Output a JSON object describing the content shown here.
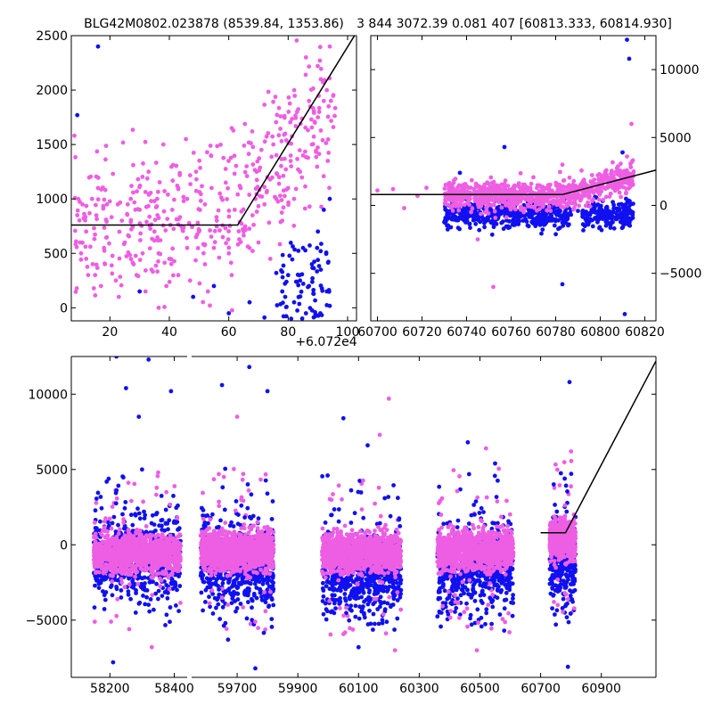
{
  "chart_data": [
    {
      "type": "scatter",
      "title": "BLG42M0802.023878 (8539.84, 1353.86)",
      "xlim": [
        7,
        103
      ],
      "ylim": [
        -120,
        2500
      ],
      "x_ticks": [
        20,
        40,
        60,
        80,
        100
      ],
      "x_tick_labels": [
        "20",
        "40",
        "60",
        "80",
        "100"
      ],
      "y_ticks": [
        0,
        500,
        1000,
        1500,
        2000,
        2500
      ],
      "y_tick_labels": [
        "0",
        "500",
        "1000",
        "1500",
        "2000",
        "2500"
      ],
      "x_offset_label": "+6.072e4",
      "colors": {
        "pink": "#ee5ee3",
        "blue": "#1010f0",
        "line": "#000000"
      },
      "model_line": [
        [
          7,
          760
        ],
        [
          63,
          760
        ],
        [
          103,
          2530
        ]
      ],
      "pink_points": [
        [
          9,
          850
        ],
        [
          12,
          700
        ],
        [
          16,
          1100
        ],
        [
          19,
          950
        ],
        [
          21,
          1230
        ],
        [
          24,
          800
        ],
        [
          27,
          1000
        ],
        [
          30,
          900
        ],
        [
          33,
          1250
        ],
        [
          35,
          700
        ],
        [
          38,
          1500
        ],
        [
          41,
          900
        ],
        [
          43,
          1100
        ],
        [
          46,
          1000
        ],
        [
          49,
          1250
        ],
        [
          52,
          950
        ],
        [
          54,
          1400
        ],
        [
          57,
          1050
        ],
        [
          59,
          1150
        ],
        [
          61,
          1650
        ],
        [
          64,
          1100
        ],
        [
          66,
          1300
        ],
        [
          69,
          1000
        ],
        [
          71,
          1450
        ],
        [
          73,
          1200
        ],
        [
          75,
          1500
        ],
        [
          77,
          1200
        ],
        [
          79,
          1600
        ],
        [
          81,
          1300
        ],
        [
          83,
          1800
        ],
        [
          85,
          1400
        ],
        [
          87,
          1900
        ],
        [
          89,
          1700
        ],
        [
          91,
          2100
        ],
        [
          93,
          2000
        ],
        [
          94,
          2400
        ],
        [
          12,
          450
        ],
        [
          15,
          300
        ],
        [
          18,
          550
        ],
        [
          22,
          250
        ],
        [
          25,
          600
        ],
        [
          28,
          400
        ],
        [
          31,
          500
        ],
        [
          34,
          350
        ],
        [
          37,
          620
        ],
        [
          40,
          450
        ],
        [
          43,
          300
        ],
        [
          46,
          550
        ],
        [
          49,
          650
        ],
        [
          52,
          400
        ],
        [
          55,
          550
        ],
        [
          58,
          650
        ],
        [
          61,
          300
        ],
        [
          65,
          700
        ],
        [
          68,
          850
        ],
        [
          72,
          950
        ],
        [
          76,
          1000
        ],
        [
          80,
          1100
        ],
        [
          84,
          1250
        ],
        [
          88,
          1500
        ],
        [
          90,
          1750
        ],
        [
          92,
          1900
        ],
        [
          86,
          2300
        ],
        [
          82,
          1000
        ],
        [
          78,
          800
        ],
        [
          70,
          600
        ],
        [
          62,
          900
        ],
        [
          56,
          800
        ],
        [
          50,
          700
        ],
        [
          44,
          750
        ],
        [
          36,
          850
        ],
        [
          26,
          950
        ],
        [
          14,
          1000
        ],
        [
          10,
          600
        ],
        [
          17,
          200
        ],
        [
          23,
          100
        ],
        [
          29,
          300
        ],
        [
          32,
          150
        ],
        [
          39,
          200
        ],
        [
          47,
          250
        ],
        [
          53,
          150
        ],
        [
          60,
          500
        ],
        [
          67,
          550
        ],
        [
          74,
          450
        ]
      ],
      "blue_points": [
        [
          9,
          1770
        ],
        [
          16,
          2400
        ],
        [
          30,
          150
        ],
        [
          48,
          100
        ],
        [
          55,
          200
        ],
        [
          60,
          -50
        ],
        [
          67,
          50
        ],
        [
          72,
          -90
        ],
        [
          76,
          320
        ],
        [
          78,
          150
        ],
        [
          80,
          300
        ],
        [
          82,
          50
        ],
        [
          84,
          250
        ],
        [
          86,
          -50
        ],
        [
          88,
          400
        ],
        [
          90,
          700
        ],
        [
          92,
          900
        ],
        [
          94,
          1000
        ],
        [
          85,
          550
        ],
        [
          81,
          -100
        ],
        [
          79,
          100
        ],
        [
          87,
          200
        ],
        [
          89,
          -80
        ],
        [
          91,
          350
        ],
        [
          93,
          150
        ]
      ]
    },
    {
      "type": "scatter",
      "title": "3 844 3072.39 0.081 407 [60813.333, 60814.930]",
      "xlim": [
        60697,
        60825
      ],
      "ylim": [
        -8500,
        12500
      ],
      "x_ticks": [
        60700,
        60720,
        60740,
        60760,
        60780,
        60800,
        60820
      ],
      "x_tick_labels": [
        "60700",
        "60720",
        "60740",
        "60760",
        "60780",
        "60800",
        "60820"
      ],
      "y_ticks": [
        -5000,
        0,
        5000,
        10000
      ],
      "y_tick_labels": [
        "−5000",
        "0",
        "5000",
        "10000"
      ],
      "colors": {
        "pink": "#ee5ee3",
        "blue": "#1010f0",
        "line": "#000000"
      },
      "model_line": [
        [
          60697,
          800
        ],
        [
          60783,
          800
        ],
        [
          60825,
          2600
        ]
      ],
      "pink_band": {
        "x_start": 60730,
        "x_end": 60815,
        "center": 700,
        "spread": 500
      },
      "blue_band": {
        "x_start": 60730,
        "x_end": 60815,
        "center": -700,
        "spread": 500
      },
      "pink_points": [
        [
          60700,
          1100
        ],
        [
          60707,
          1200
        ],
        [
          60712,
          -200
        ],
        [
          60718,
          700
        ],
        [
          60722,
          1300
        ],
        [
          60745,
          -2500
        ],
        [
          60752,
          -6000
        ],
        [
          60783,
          3000
        ],
        [
          60806,
          2200
        ],
        [
          60812,
          3600
        ],
        [
          60814,
          6000
        ],
        [
          60815,
          2500
        ]
      ],
      "blue_points": [
        [
          60737,
          2400
        ],
        [
          60757,
          4300
        ],
        [
          60783,
          -5800
        ],
        [
          60790,
          -400
        ],
        [
          60811,
          -8000
        ],
        [
          60812,
          12200
        ],
        [
          60813,
          10800
        ],
        [
          60810,
          3900
        ]
      ]
    },
    {
      "type": "scatter",
      "title": "",
      "x_breaks": [
        {
          "xlim": [
            58080,
            58440
          ],
          "ticks": [
            58200,
            58400
          ],
          "tick_labels": [
            "58200",
            "58400"
          ]
        },
        {
          "xlim": [
            59550,
            61080
          ],
          "ticks": [
            59700,
            59900,
            60100,
            60300,
            60500,
            60700,
            60900
          ],
          "tick_labels": [
            "59700",
            "59900",
            "60100",
            "60300",
            "60500",
            "60700",
            "60900"
          ]
        }
      ],
      "ylim": [
        -8800,
        12500
      ],
      "y_ticks": [
        -5000,
        0,
        5000,
        10000
      ],
      "y_tick_labels": [
        "−5000",
        "0",
        "5000",
        "10000"
      ],
      "colors": {
        "pink": "#ee5ee3",
        "blue": "#1010f0",
        "line": "#000000"
      },
      "model_line": [
        [
          60700,
          800
        ],
        [
          60782,
          800
        ],
        [
          61080,
          12200
        ]
      ],
      "seasons": [
        {
          "x_start": 58150,
          "x_end": 58420,
          "pink_center": -600,
          "blue_center": -800
        },
        {
          "x_start": 59580,
          "x_end": 59820,
          "pink_center": -400,
          "blue_center": -1300
        },
        {
          "x_start": 59980,
          "x_end": 60240,
          "pink_center": -500,
          "blue_center": -1800
        },
        {
          "x_start": 60360,
          "x_end": 60610,
          "pink_center": -400,
          "blue_center": -1500
        },
        {
          "x_start": 60730,
          "x_end": 60815,
          "pink_center": 300,
          "blue_center": -900
        }
      ],
      "outlier_points": [
        [
          58220,
          12500,
          "blue"
        ],
        [
          58250,
          10400,
          "blue"
        ],
        [
          58290,
          8500,
          "blue"
        ],
        [
          58320,
          12300,
          "blue"
        ],
        [
          58390,
          10200,
          "blue"
        ],
        [
          58300,
          5000,
          "blue"
        ],
        [
          58350,
          4800,
          "pink"
        ],
        [
          58210,
          -7800,
          "blue"
        ],
        [
          58260,
          -5600,
          "pink"
        ],
        [
          58330,
          -6800,
          "pink"
        ],
        [
          59650,
          10600,
          "blue"
        ],
        [
          59700,
          8500,
          "pink"
        ],
        [
          59740,
          11800,
          "blue"
        ],
        [
          59800,
          10200,
          "blue"
        ],
        [
          59670,
          -6300,
          "blue"
        ],
        [
          59760,
          -8200,
          "blue"
        ],
        [
          59720,
          4700,
          "pink"
        ],
        [
          60050,
          8400,
          "blue"
        ],
        [
          60130,
          6600,
          "blue"
        ],
        [
          60200,
          9700,
          "pink"
        ],
        [
          60170,
          7300,
          "pink"
        ],
        [
          60100,
          -6800,
          "blue"
        ],
        [
          60220,
          -7000,
          "pink"
        ],
        [
          60460,
          6800,
          "blue"
        ],
        [
          60520,
          6400,
          "pink"
        ],
        [
          60550,
          5400,
          "blue"
        ],
        [
          60490,
          -7000,
          "pink"
        ],
        [
          60580,
          -5700,
          "blue"
        ],
        [
          60790,
          12700,
          "blue"
        ],
        [
          60795,
          10800,
          "blue"
        ],
        [
          60800,
          6200,
          "pink"
        ],
        [
          60780,
          -3200,
          "pink"
        ],
        [
          60790,
          -8100,
          "blue"
        ]
      ]
    }
  ]
}
